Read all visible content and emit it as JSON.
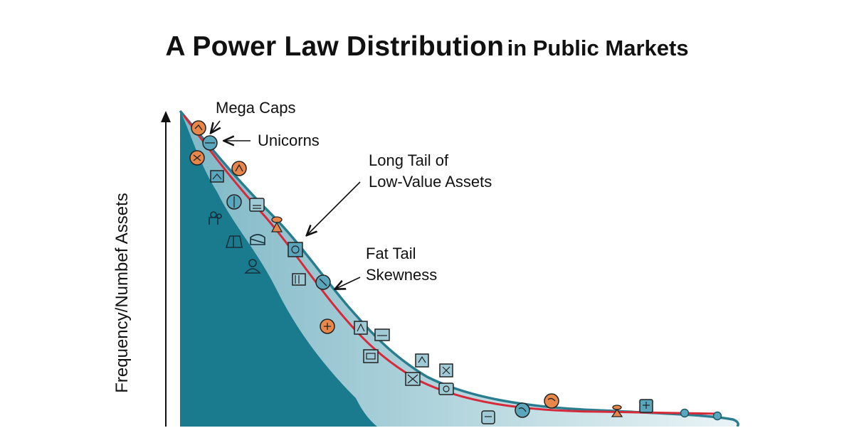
{
  "title": {
    "main": "A Power Law Distribution",
    "suffix": "in Public Markets"
  },
  "y_axis_label": "Frequency/Numbef Assets",
  "annotations": {
    "mega_caps": "Mega Caps",
    "unicorns": "Unicorns",
    "long_tail_line1": "Long Tail of",
    "long_tail_line2": "Low-Value Assets",
    "fat_tail_line1": "Fat Tail",
    "fat_tail_line2": "Skewness"
  },
  "colors": {
    "dark_fill": "#1b7b8e",
    "light_fill_start": "#7fb8c6",
    "light_fill_end": "#eaf4f6",
    "curve": "#d62a3a",
    "curve_outline": "#2a7d8f",
    "orange_marker": "#e8874a",
    "teal_marker": "#5aa7bd",
    "text": "#111111"
  },
  "markers": {
    "orange_circle_icon": "company-icon",
    "teal_circle_icon": "company-icon",
    "square_icon": "asset-icon",
    "cone_icon": "cone-icon",
    "tail_dot_icon": "dot-icon"
  }
}
